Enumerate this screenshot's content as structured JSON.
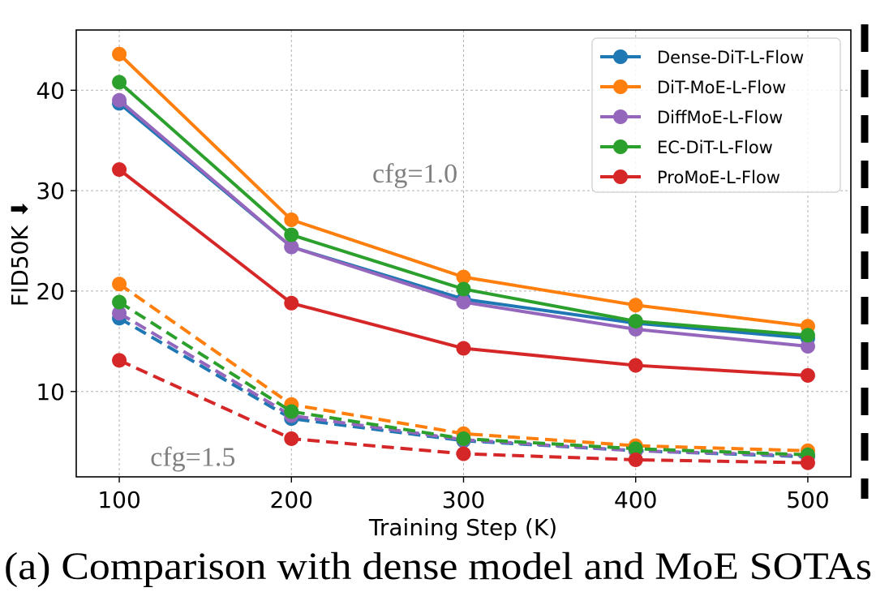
{
  "chart_data": {
    "type": "line",
    "title": "",
    "caption": "(a) Comparison with dense model and MoE SOTAs",
    "xlabel": "Training Step (K)",
    "ylabel": "FID50K",
    "ylabel_arrow": "⬇",
    "x": [
      100,
      200,
      300,
      400,
      500
    ],
    "xlim": [
      75,
      525
    ],
    "ylim": [
      1.5,
      46
    ],
    "xticks": [
      100,
      200,
      300,
      400,
      500
    ],
    "yticks": [
      10,
      20,
      30,
      40
    ],
    "grid": true,
    "legend_position": "top-right",
    "series": [
      {
        "name": "Dense-DiT-L-Flow",
        "color": "#1f77b4",
        "group": "cfg=1.0",
        "style": "solid",
        "values": [
          38.7,
          24.4,
          19.2,
          16.8,
          15.3
        ]
      },
      {
        "name": "DiT-MoE-L-Flow",
        "color": "#ff7f0e",
        "group": "cfg=1.0",
        "style": "solid",
        "values": [
          43.6,
          27.1,
          21.4,
          18.6,
          16.5
        ]
      },
      {
        "name": "DiffMoE-L-Flow",
        "color": "#9467bd",
        "group": "cfg=1.0",
        "style": "solid",
        "values": [
          39.0,
          24.4,
          18.9,
          16.2,
          14.5
        ]
      },
      {
        "name": "EC-DiT-L-Flow",
        "color": "#2ca02c",
        "group": "cfg=1.0",
        "style": "solid",
        "values": [
          40.8,
          25.6,
          20.2,
          17.0,
          15.6
        ]
      },
      {
        "name": "ProMoE-L-Flow",
        "color": "#d62728",
        "group": "cfg=1.0",
        "style": "solid",
        "values": [
          32.1,
          18.8,
          14.3,
          12.6,
          11.6
        ]
      },
      {
        "name": "Dense-DiT-L-Flow",
        "color": "#1f77b4",
        "group": "cfg=1.5",
        "style": "dashed",
        "values": [
          17.3,
          7.3,
          5.1,
          4.1,
          3.5
        ]
      },
      {
        "name": "DiT-MoE-L-Flow",
        "color": "#ff7f0e",
        "group": "cfg=1.5",
        "style": "dashed",
        "values": [
          20.7,
          8.7,
          5.8,
          4.6,
          4.1
        ]
      },
      {
        "name": "DiffMoE-L-Flow",
        "color": "#9467bd",
        "group": "cfg=1.5",
        "style": "dashed",
        "values": [
          17.8,
          7.6,
          5.2,
          4.1,
          3.6
        ]
      },
      {
        "name": "EC-DiT-L-Flow",
        "color": "#2ca02c",
        "group": "cfg=1.5",
        "style": "dashed",
        "values": [
          18.9,
          8.0,
          5.3,
          4.3,
          3.7
        ]
      },
      {
        "name": "ProMoE-L-Flow",
        "color": "#d62728",
        "group": "cfg=1.5",
        "style": "dashed",
        "values": [
          13.1,
          5.3,
          3.8,
          3.2,
          2.9
        ]
      }
    ],
    "legend": [
      {
        "name": "Dense-DiT-L-Flow",
        "color": "#1f77b4"
      },
      {
        "name": "DiT-MoE-L-Flow",
        "color": "#ff7f0e"
      },
      {
        "name": "DiffMoE-L-Flow",
        "color": "#9467bd"
      },
      {
        "name": "EC-DiT-L-Flow",
        "color": "#2ca02c"
      },
      {
        "name": "ProMoE-L-Flow",
        "color": "#d62728"
      }
    ],
    "annotations": [
      {
        "text": "cfg=1.0",
        "x": 247,
        "y": 30.8
      },
      {
        "text": "cfg=1.5",
        "x": 118,
        "y": 2.6
      }
    ]
  }
}
